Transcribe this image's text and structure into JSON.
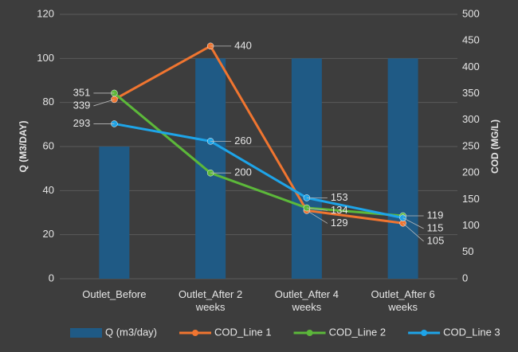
{
  "chart_data": {
    "type": "bar-line",
    "categories": [
      "Outlet_Before",
      "Outlet_After 2 weeks",
      "Outlet_After 4 weeks",
      "Outlet_After 6 weeks"
    ],
    "series": [
      {
        "name": "Q (m3/day)",
        "color": "#1f5a85",
        "type": "bar",
        "axis": "y",
        "values": [
          60,
          100,
          100,
          100
        ]
      },
      {
        "name": "COD_Line 1",
        "color": "#f07530",
        "type": "line",
        "axis": "y2",
        "values": [
          339,
          440,
          129,
          105
        ]
      },
      {
        "name": "COD_Line 2",
        "color": "#5cb83a",
        "type": "line",
        "axis": "y2",
        "values": [
          351,
          200,
          134,
          119
        ]
      },
      {
        "name": "COD_Line 3",
        "color": "#1ea4e8",
        "type": "line",
        "axis": "y2",
        "values": [
          293,
          260,
          153,
          115
        ]
      }
    ],
    "ylabel": "Q (M3/DAY)",
    "y2label": "COD (MG/L)",
    "ylim": [
      0,
      120
    ],
    "yticks": [
      0,
      20,
      40,
      60,
      80,
      100,
      120
    ],
    "y2lim": [
      0,
      500
    ],
    "y2ticks": [
      0,
      50,
      100,
      150,
      200,
      250,
      300,
      350,
      400,
      450,
      500
    ],
    "grid": true,
    "legend": "bottom"
  }
}
